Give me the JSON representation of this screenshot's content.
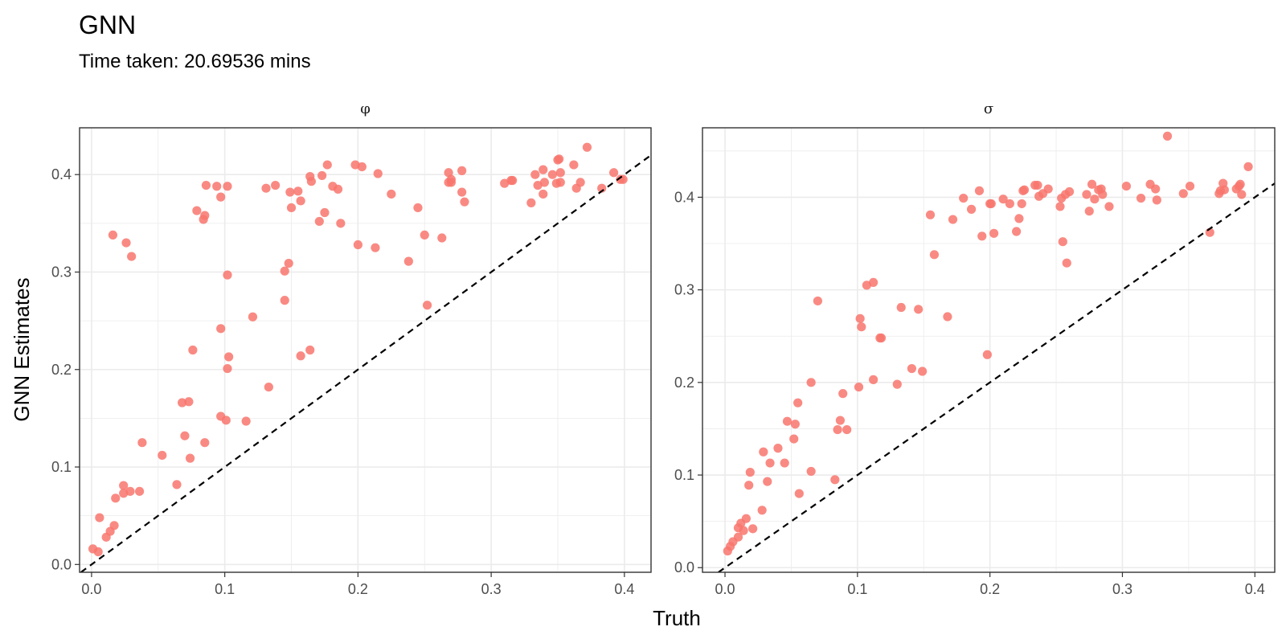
{
  "title": "GNN",
  "subtitle": "Time taken: 20.69536 mins",
  "xlabel": "Truth",
  "ylabel": "GNN Estimates",
  "colors": {
    "point": "#F8766D",
    "reference_line": "#000000"
  },
  "chart_data": [
    {
      "type": "scatter",
      "facet": "φ",
      "xlim": [
        -0.009,
        0.42
      ],
      "ylim": [
        -0.008,
        0.448
      ],
      "x_ticks": [
        0.0,
        0.1,
        0.2,
        0.3,
        0.4
      ],
      "x_tick_labels": [
        "0.0",
        "0.1",
        "0.2",
        "0.3",
        "0.4"
      ],
      "y_ticks": [
        0.0,
        0.1,
        0.2,
        0.3,
        0.4
      ],
      "y_tick_labels": [
        "0.0",
        "0.1",
        "0.2",
        "0.3",
        "0.4"
      ],
      "grid": true,
      "reference_line": "y = x",
      "points": [
        [
          0.001,
          0.016
        ],
        [
          0.005,
          0.013
        ],
        [
          0.006,
          0.048
        ],
        [
          0.011,
          0.028
        ],
        [
          0.014,
          0.034
        ],
        [
          0.016,
          0.338
        ],
        [
          0.017,
          0.04
        ],
        [
          0.018,
          0.068
        ],
        [
          0.024,
          0.073
        ],
        [
          0.024,
          0.081
        ],
        [
          0.026,
          0.33
        ],
        [
          0.029,
          0.075
        ],
        [
          0.03,
          0.316
        ],
        [
          0.036,
          0.075
        ],
        [
          0.038,
          0.125
        ],
        [
          0.053,
          0.112
        ],
        [
          0.064,
          0.082
        ],
        [
          0.068,
          0.166
        ],
        [
          0.07,
          0.132
        ],
        [
          0.073,
          0.167
        ],
        [
          0.074,
          0.109
        ],
        [
          0.076,
          0.22
        ],
        [
          0.079,
          0.363
        ],
        [
          0.084,
          0.354
        ],
        [
          0.085,
          0.358
        ],
        [
          0.085,
          0.125
        ],
        [
          0.086,
          0.389
        ],
        [
          0.094,
          0.388
        ],
        [
          0.097,
          0.152
        ],
        [
          0.097,
          0.242
        ],
        [
          0.097,
          0.377
        ],
        [
          0.101,
          0.148
        ],
        [
          0.102,
          0.388
        ],
        [
          0.102,
          0.297
        ],
        [
          0.102,
          0.201
        ],
        [
          0.103,
          0.213
        ],
        [
          0.116,
          0.147
        ],
        [
          0.121,
          0.254
        ],
        [
          0.131,
          0.386
        ],
        [
          0.133,
          0.182
        ],
        [
          0.138,
          0.389
        ],
        [
          0.145,
          0.301
        ],
        [
          0.145,
          0.271
        ],
        [
          0.148,
          0.309
        ],
        [
          0.149,
          0.382
        ],
        [
          0.15,
          0.366
        ],
        [
          0.155,
          0.383
        ],
        [
          0.157,
          0.214
        ],
        [
          0.157,
          0.373
        ],
        [
          0.164,
          0.22
        ],
        [
          0.164,
          0.398
        ],
        [
          0.165,
          0.393
        ],
        [
          0.171,
          0.352
        ],
        [
          0.173,
          0.399
        ],
        [
          0.175,
          0.361
        ],
        [
          0.177,
          0.41
        ],
        [
          0.181,
          0.388
        ],
        [
          0.185,
          0.385
        ],
        [
          0.187,
          0.35
        ],
        [
          0.198,
          0.41
        ],
        [
          0.2,
          0.328
        ],
        [
          0.203,
          0.408
        ],
        [
          0.213,
          0.325
        ],
        [
          0.215,
          0.401
        ],
        [
          0.225,
          0.38
        ],
        [
          0.238,
          0.311
        ],
        [
          0.245,
          0.366
        ],
        [
          0.25,
          0.338
        ],
        [
          0.252,
          0.266
        ],
        [
          0.263,
          0.335
        ],
        [
          0.268,
          0.402
        ],
        [
          0.268,
          0.392
        ],
        [
          0.27,
          0.395
        ],
        [
          0.27,
          0.392
        ],
        [
          0.278,
          0.404
        ],
        [
          0.278,
          0.382
        ],
        [
          0.28,
          0.372
        ],
        [
          0.31,
          0.391
        ],
        [
          0.315,
          0.394
        ],
        [
          0.316,
          0.394
        ],
        [
          0.33,
          0.371
        ],
        [
          0.333,
          0.4
        ],
        [
          0.335,
          0.389
        ],
        [
          0.339,
          0.405
        ],
        [
          0.339,
          0.38
        ],
        [
          0.34,
          0.392
        ],
        [
          0.346,
          0.4
        ],
        [
          0.349,
          0.391
        ],
        [
          0.35,
          0.415
        ],
        [
          0.351,
          0.416
        ],
        [
          0.352,
          0.402
        ],
        [
          0.352,
          0.392
        ],
        [
          0.362,
          0.41
        ],
        [
          0.364,
          0.386
        ],
        [
          0.367,
          0.392
        ],
        [
          0.372,
          0.428
        ],
        [
          0.383,
          0.386
        ],
        [
          0.392,
          0.402
        ],
        [
          0.397,
          0.395
        ],
        [
          0.399,
          0.395
        ]
      ]
    },
    {
      "type": "scatter",
      "facet": "σ",
      "xlim": [
        -0.017,
        0.415
      ],
      "ylim": [
        -0.005,
        0.475
      ],
      "x_ticks": [
        0.0,
        0.1,
        0.2,
        0.3,
        0.4
      ],
      "x_tick_labels": [
        "0.0",
        "0.1",
        "0.2",
        "0.3",
        "0.4"
      ],
      "y_ticks": [
        0.0,
        0.1,
        0.2,
        0.3,
        0.4
      ],
      "y_tick_labels": [
        "0.0",
        "0.1",
        "0.2",
        "0.3",
        "0.4"
      ],
      "grid": true,
      "reference_line": "y = x",
      "points": [
        [
          0.002,
          0.018
        ],
        [
          0.004,
          0.023
        ],
        [
          0.006,
          0.028
        ],
        [
          0.01,
          0.033
        ],
        [
          0.01,
          0.043
        ],
        [
          0.012,
          0.048
        ],
        [
          0.014,
          0.04
        ],
        [
          0.016,
          0.053
        ],
        [
          0.018,
          0.089
        ],
        [
          0.019,
          0.103
        ],
        [
          0.021,
          0.042
        ],
        [
          0.028,
          0.062
        ],
        [
          0.029,
          0.125
        ],
        [
          0.032,
          0.093
        ],
        [
          0.034,
          0.113
        ],
        [
          0.04,
          0.129
        ],
        [
          0.045,
          0.113
        ],
        [
          0.047,
          0.158
        ],
        [
          0.052,
          0.139
        ],
        [
          0.053,
          0.155
        ],
        [
          0.055,
          0.178
        ],
        [
          0.056,
          0.08
        ],
        [
          0.065,
          0.104
        ],
        [
          0.065,
          0.2
        ],
        [
          0.07,
          0.288
        ],
        [
          0.083,
          0.095
        ],
        [
          0.085,
          0.149
        ],
        [
          0.087,
          0.159
        ],
        [
          0.089,
          0.188
        ],
        [
          0.092,
          0.149
        ],
        [
          0.101,
          0.195
        ],
        [
          0.102,
          0.269
        ],
        [
          0.103,
          0.26
        ],
        [
          0.107,
          0.305
        ],
        [
          0.112,
          0.308
        ],
        [
          0.112,
          0.203
        ],
        [
          0.117,
          0.248
        ],
        [
          0.118,
          0.248
        ],
        [
          0.13,
          0.198
        ],
        [
          0.133,
          0.281
        ],
        [
          0.141,
          0.215
        ],
        [
          0.146,
          0.279
        ],
        [
          0.149,
          0.212
        ],
        [
          0.155,
          0.381
        ],
        [
          0.158,
          0.338
        ],
        [
          0.168,
          0.271
        ],
        [
          0.172,
          0.376
        ],
        [
          0.18,
          0.399
        ],
        [
          0.186,
          0.387
        ],
        [
          0.192,
          0.407
        ],
        [
          0.194,
          0.358
        ],
        [
          0.198,
          0.23
        ],
        [
          0.2,
          0.393
        ],
        [
          0.201,
          0.393
        ],
        [
          0.203,
          0.361
        ],
        [
          0.21,
          0.398
        ],
        [
          0.215,
          0.393
        ],
        [
          0.22,
          0.363
        ],
        [
          0.222,
          0.377
        ],
        [
          0.224,
          0.393
        ],
        [
          0.225,
          0.407
        ],
        [
          0.226,
          0.408
        ],
        [
          0.234,
          0.413
        ],
        [
          0.236,
          0.413
        ],
        [
          0.237,
          0.401
        ],
        [
          0.24,
          0.404
        ],
        [
          0.244,
          0.409
        ],
        [
          0.253,
          0.39
        ],
        [
          0.254,
          0.399
        ],
        [
          0.255,
          0.352
        ],
        [
          0.257,
          0.403
        ],
        [
          0.258,
          0.329
        ],
        [
          0.26,
          0.406
        ],
        [
          0.273,
          0.403
        ],
        [
          0.275,
          0.385
        ],
        [
          0.277,
          0.414
        ],
        [
          0.279,
          0.398
        ],
        [
          0.282,
          0.408
        ],
        [
          0.284,
          0.409
        ],
        [
          0.285,
          0.403
        ],
        [
          0.29,
          0.39
        ],
        [
          0.303,
          0.412
        ],
        [
          0.314,
          0.399
        ],
        [
          0.321,
          0.414
        ],
        [
          0.325,
          0.409
        ],
        [
          0.326,
          0.397
        ],
        [
          0.334,
          0.466
        ],
        [
          0.346,
          0.404
        ],
        [
          0.351,
          0.412
        ],
        [
          0.366,
          0.362
        ],
        [
          0.373,
          0.404
        ],
        [
          0.374,
          0.407
        ],
        [
          0.376,
          0.415
        ],
        [
          0.377,
          0.408
        ],
        [
          0.386,
          0.409
        ],
        [
          0.388,
          0.412
        ],
        [
          0.389,
          0.414
        ],
        [
          0.39,
          0.403
        ],
        [
          0.395,
          0.433
        ]
      ]
    }
  ]
}
